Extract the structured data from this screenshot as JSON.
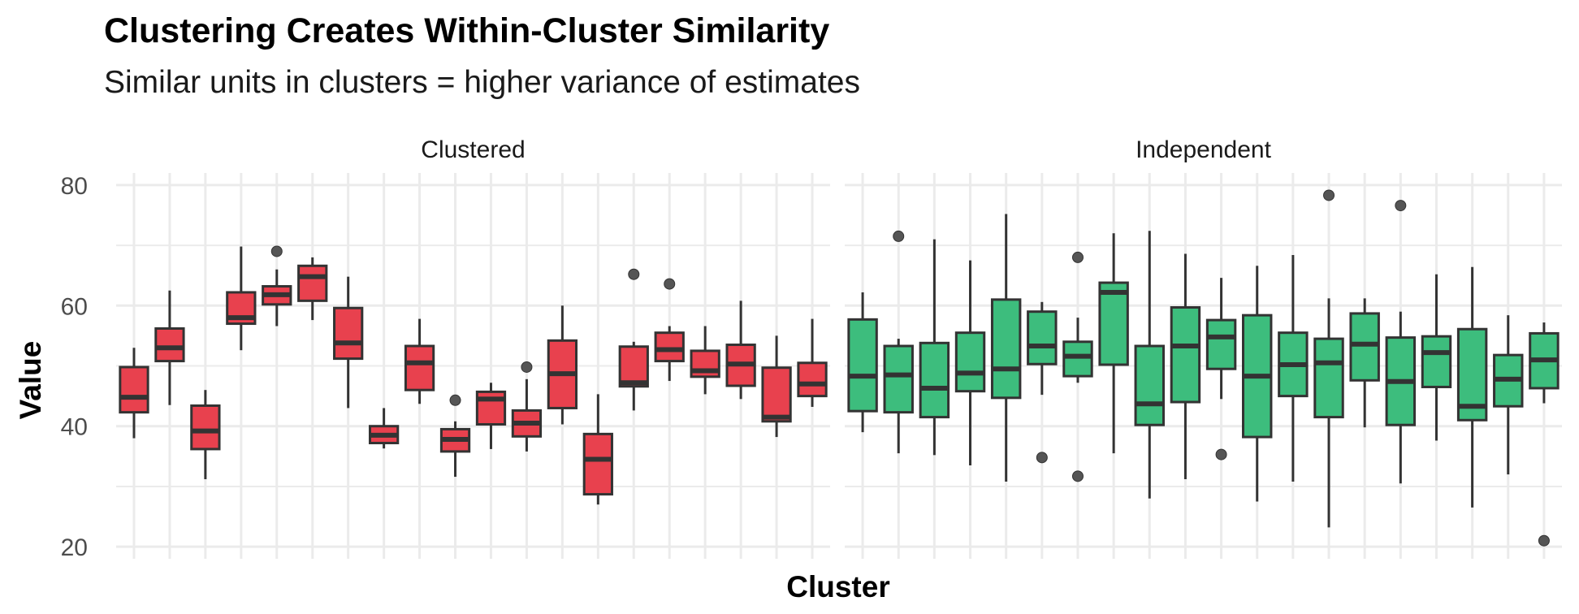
{
  "chart_data": {
    "type": "boxplot",
    "title": "Clustering Creates Within-Cluster Similarity",
    "subtitle": "Similar units in clusters = higher variance of estimates",
    "xlabel": "Cluster",
    "ylabel": "Value",
    "ylim": [
      18,
      82
    ],
    "y_ticks": [
      20,
      40,
      60,
      80
    ],
    "grid": true,
    "legend": "none",
    "panels": [
      {
        "name": "Clustered",
        "color": "#e8414e",
        "boxes": [
          {
            "lower": 38,
            "q1": 42.3,
            "median": 44.8,
            "q3": 49.8,
            "upper": 53,
            "outliers": []
          },
          {
            "lower": 43.5,
            "q1": 50.8,
            "median": 53,
            "q3": 56.2,
            "upper": 62.5,
            "outliers": []
          },
          {
            "lower": 31.2,
            "q1": 36.2,
            "median": 39.2,
            "q3": 43.4,
            "upper": 46,
            "outliers": []
          },
          {
            "lower": 52.6,
            "q1": 57,
            "median": 58,
            "q3": 62.2,
            "upper": 69.8,
            "outliers": []
          },
          {
            "lower": 56.6,
            "q1": 60.2,
            "median": 61.8,
            "q3": 63.2,
            "upper": 66,
            "outliers": [
              69
            ]
          },
          {
            "lower": 57.6,
            "q1": 60.8,
            "median": 64.8,
            "q3": 66.6,
            "upper": 68,
            "outliers": []
          },
          {
            "lower": 43,
            "q1": 51.2,
            "median": 53.8,
            "q3": 59.6,
            "upper": 64.8,
            "outliers": []
          },
          {
            "lower": 36.3,
            "q1": 37.2,
            "median": 38.5,
            "q3": 40,
            "upper": 43,
            "outliers": []
          },
          {
            "lower": 43.7,
            "q1": 46,
            "median": 50.5,
            "q3": 53.3,
            "upper": 57.8,
            "outliers": []
          },
          {
            "lower": 31.6,
            "q1": 35.8,
            "median": 37.8,
            "q3": 39.5,
            "upper": 40.8,
            "outliers": [
              44.3
            ]
          },
          {
            "lower": 36.2,
            "q1": 40.3,
            "median": 44.5,
            "q3": 45.7,
            "upper": 47.2,
            "outliers": []
          },
          {
            "lower": 35.8,
            "q1": 38.3,
            "median": 40.5,
            "q3": 42.6,
            "upper": 47.8,
            "outliers": [
              49.8
            ]
          },
          {
            "lower": 40.3,
            "q1": 43,
            "median": 48.7,
            "q3": 54.2,
            "upper": 60,
            "outliers": []
          },
          {
            "lower": 27,
            "q1": 28.7,
            "median": 34.5,
            "q3": 38.7,
            "upper": 45.3,
            "outliers": []
          },
          {
            "lower": 42.6,
            "q1": 46.6,
            "median": 47.2,
            "q3": 53.2,
            "upper": 54,
            "outliers": [
              65.2
            ]
          },
          {
            "lower": 47.5,
            "q1": 50.8,
            "median": 52.7,
            "q3": 55.5,
            "upper": 56.6,
            "outliers": [
              63.6
            ]
          },
          {
            "lower": 45.3,
            "q1": 48.2,
            "median": 49.2,
            "q3": 52.5,
            "upper": 56.6,
            "outliers": []
          },
          {
            "lower": 44.5,
            "q1": 46.7,
            "median": 50.3,
            "q3": 53.5,
            "upper": 60.8,
            "outliers": []
          },
          {
            "lower": 38.2,
            "q1": 40.8,
            "median": 41.5,
            "q3": 49.7,
            "upper": 55,
            "outliers": []
          },
          {
            "lower": 43.2,
            "q1": 45,
            "median": 47,
            "q3": 50.5,
            "upper": 57.8,
            "outliers": []
          }
        ]
      },
      {
        "name": "Independent",
        "color": "#3dbd7d",
        "boxes": [
          {
            "lower": 39,
            "q1": 42.5,
            "median": 48.3,
            "q3": 57.7,
            "upper": 62.2,
            "outliers": []
          },
          {
            "lower": 35.5,
            "q1": 42.3,
            "median": 48.5,
            "q3": 53.3,
            "upper": 54.5,
            "outliers": [
              71.5
            ]
          },
          {
            "lower": 35.2,
            "q1": 41.5,
            "median": 46.3,
            "q3": 53.8,
            "upper": 71,
            "outliers": []
          },
          {
            "lower": 33.5,
            "q1": 45.8,
            "median": 48.8,
            "q3": 55.5,
            "upper": 67.5,
            "outliers": []
          },
          {
            "lower": 30.8,
            "q1": 44.7,
            "median": 49.5,
            "q3": 61,
            "upper": 75.2,
            "outliers": []
          },
          {
            "lower": 45.2,
            "q1": 50.3,
            "median": 53.3,
            "q3": 59,
            "upper": 60.6,
            "outliers": [
              34.8
            ]
          },
          {
            "lower": 47.2,
            "q1": 48.3,
            "median": 51.6,
            "q3": 54,
            "upper": 58,
            "outliers": [
              68,
              31.7
            ]
          },
          {
            "lower": 35.5,
            "q1": 50.2,
            "median": 62.2,
            "q3": 63.8,
            "upper": 72,
            "outliers": []
          },
          {
            "lower": 28,
            "q1": 40.2,
            "median": 43.7,
            "q3": 53.3,
            "upper": 72.4,
            "outliers": []
          },
          {
            "lower": 31.2,
            "q1": 44,
            "median": 53.3,
            "q3": 59.7,
            "upper": 68.6,
            "outliers": []
          },
          {
            "lower": 44.5,
            "q1": 49.5,
            "median": 54.8,
            "q3": 57.6,
            "upper": 64.6,
            "outliers": [
              35.3
            ]
          },
          {
            "lower": 27.5,
            "q1": 38.2,
            "median": 48.3,
            "q3": 58.4,
            "upper": 66.6,
            "outliers": []
          },
          {
            "lower": 30.8,
            "q1": 45,
            "median": 50.2,
            "q3": 55.5,
            "upper": 68.4,
            "outliers": []
          },
          {
            "lower": 23.2,
            "q1": 41.5,
            "median": 50.5,
            "q3": 54.5,
            "upper": 61.2,
            "outliers": [
              78.3
            ]
          },
          {
            "lower": 39.8,
            "q1": 47.6,
            "median": 53.6,
            "q3": 58.7,
            "upper": 61.2,
            "outliers": []
          },
          {
            "lower": 30.5,
            "q1": 40.2,
            "median": 47.4,
            "q3": 54.7,
            "upper": 59,
            "outliers": [
              76.6
            ]
          },
          {
            "lower": 37.6,
            "q1": 46.5,
            "median": 52.2,
            "q3": 54.9,
            "upper": 65.2,
            "outliers": []
          },
          {
            "lower": 26.5,
            "q1": 41,
            "median": 43.3,
            "q3": 56.1,
            "upper": 66.4,
            "outliers": []
          },
          {
            "lower": 32,
            "q1": 43.3,
            "median": 47.8,
            "q3": 51.8,
            "upper": 58.4,
            "outliers": []
          },
          {
            "lower": 43.8,
            "q1": 46.3,
            "median": 51,
            "q3": 55.4,
            "upper": 57.2,
            "outliers": [
              21
            ]
          }
        ]
      }
    ]
  }
}
